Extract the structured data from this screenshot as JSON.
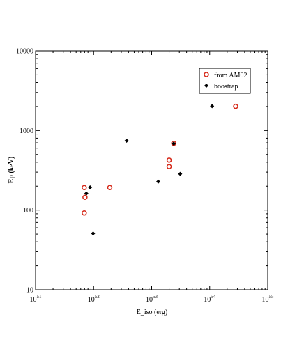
{
  "chart_data": {
    "type": "scatter",
    "title": "",
    "xlabel": "E_iso (erg)",
    "ylabel": "Ep (keV)",
    "x_scale": "log",
    "y_scale": "log",
    "xlim": [
      1e+51,
      1e+55
    ],
    "ylim": [
      10,
      10000
    ],
    "grid": false,
    "legend_position": "top-right",
    "x_ticks": [
      {
        "value": 1e+51,
        "base": "10",
        "exp": "51"
      },
      {
        "value": 1e+52,
        "base": "10",
        "exp": "52"
      },
      {
        "value": 1e+53,
        "base": "10",
        "exp": "53"
      },
      {
        "value": 1e+54,
        "base": "10",
        "exp": "54"
      },
      {
        "value": 1e+55,
        "base": "10",
        "exp": "55"
      }
    ],
    "y_ticks": [
      {
        "value": 10,
        "label": "10"
      },
      {
        "value": 100,
        "label": "100"
      },
      {
        "value": 1000,
        "label": "1000"
      },
      {
        "value": 10000,
        "label": "10000"
      }
    ],
    "series": [
      {
        "name": "from AM02",
        "marker": "open-circle",
        "color": "#d62818",
        "points": [
          {
            "x": 6.9e+51,
            "y": 92
          },
          {
            "x": 7.1e+51,
            "y": 145
          },
          {
            "x": 6.9e+51,
            "y": 192
          },
          {
            "x": 1.9e+52,
            "y": 192
          },
          {
            "x": 2e+53,
            "y": 352
          },
          {
            "x": 2e+53,
            "y": 425
          },
          {
            "x": 2.4e+53,
            "y": 690
          },
          {
            "x": 2.8e+54,
            "y": 2010
          }
        ]
      },
      {
        "name": "boostrap",
        "marker": "filled-diamond",
        "color": "#000000",
        "points": [
          {
            "x": 7.5e+51,
            "y": 162
          },
          {
            "x": 8.7e+51,
            "y": 193
          },
          {
            "x": 9.8e+51,
            "y": 51
          },
          {
            "x": 3.7e+52,
            "y": 745
          },
          {
            "x": 1.3e+53,
            "y": 228
          },
          {
            "x": 2.4e+53,
            "y": 685
          },
          {
            "x": 3.1e+53,
            "y": 285
          },
          {
            "x": 1.1e+54,
            "y": 2020
          }
        ]
      }
    ]
  }
}
